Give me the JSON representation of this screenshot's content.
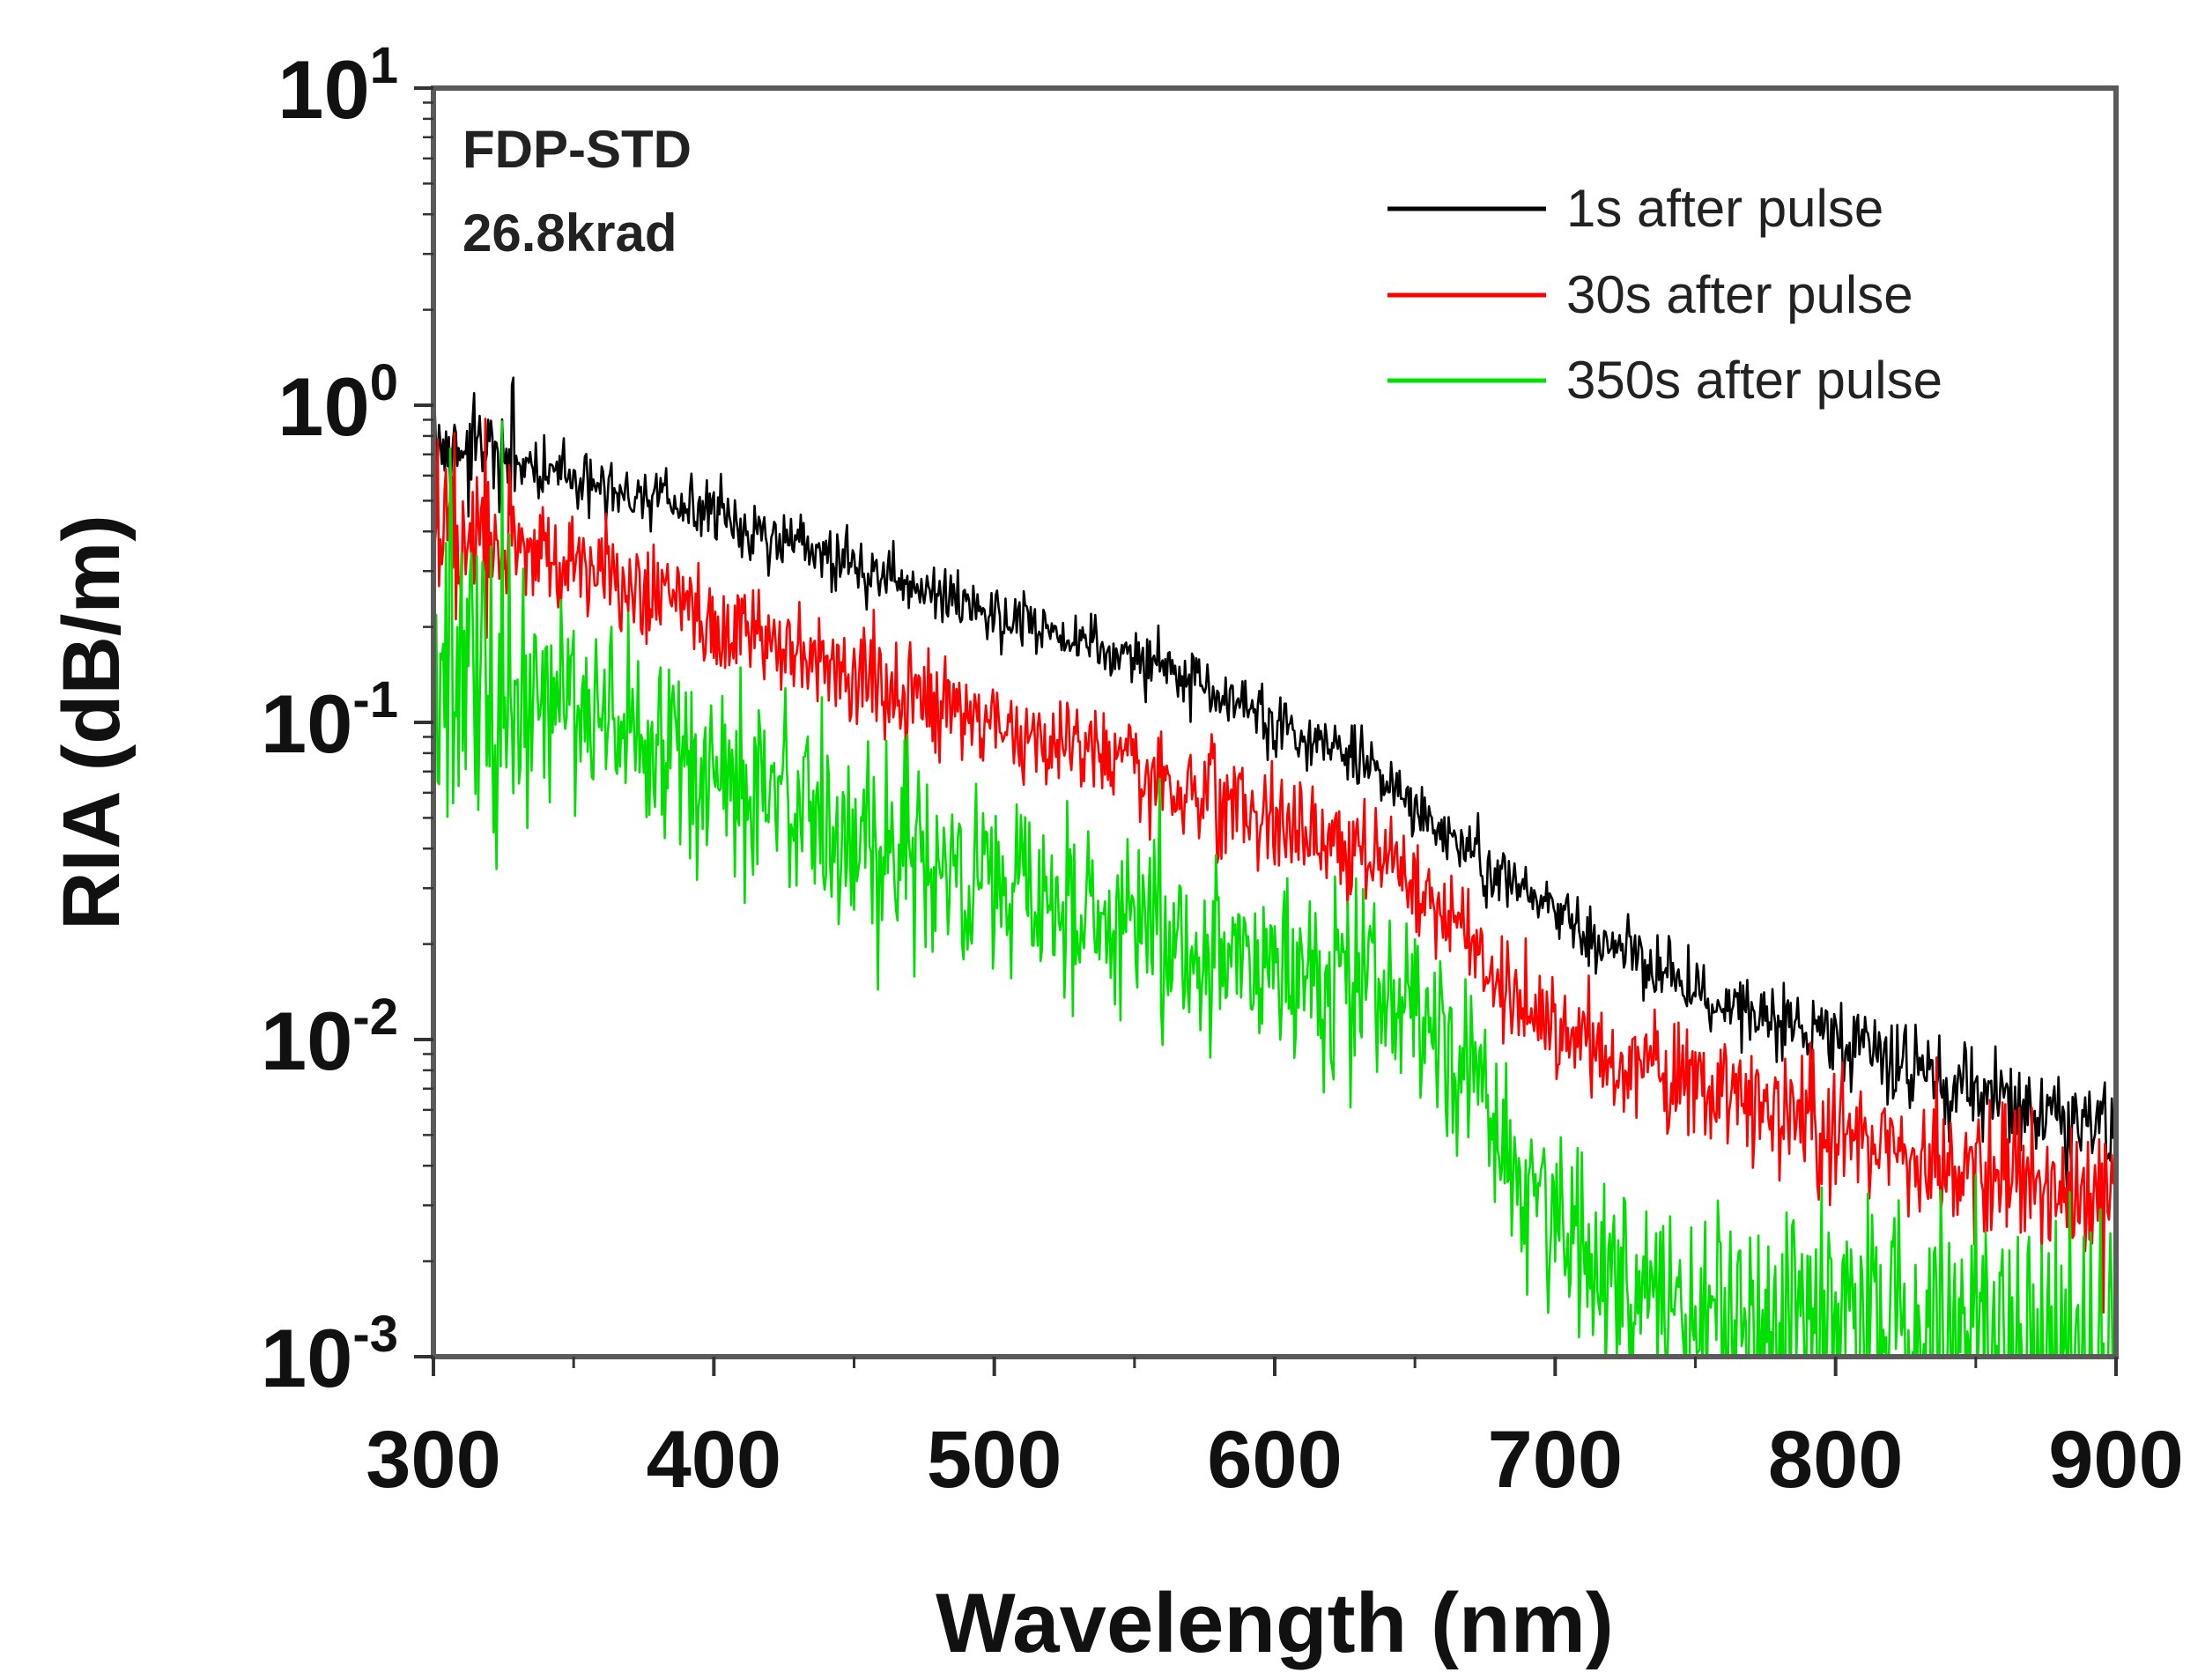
{
  "chart_data": {
    "type": "line",
    "xlabel": "Wavelength (nm)",
    "ylabel": "RIA (dB/m)",
    "xlim": [
      300,
      900
    ],
    "ylim": [
      0.001,
      10
    ],
    "yscale": "log",
    "grid": false,
    "legend_position": "top-right",
    "x_ticks": [
      300,
      400,
      500,
      600,
      700,
      800,
      900
    ],
    "y_ticks": [
      {
        "value": 10,
        "base": "10",
        "exp": "1"
      },
      {
        "value": 1,
        "base": "10",
        "exp": "0"
      },
      {
        "value": 0.1,
        "base": "10",
        "exp": "-1"
      },
      {
        "value": 0.01,
        "base": "10",
        "exp": "-2"
      },
      {
        "value": 0.001,
        "base": "10",
        "exp": "-3"
      }
    ],
    "annotations": [
      "FDP-STD",
      "26.8krad"
    ],
    "series": [
      {
        "name": "1s after pulse",
        "color": "#000000",
        "noise": 0.05,
        "x": [
          300,
          310,
          330,
          350,
          400,
          450,
          500,
          550,
          600,
          630,
          650,
          670,
          700,
          730,
          760,
          800,
          850,
          900
        ],
        "values": [
          0.75,
          0.72,
          0.66,
          0.6,
          0.45,
          0.32,
          0.22,
          0.16,
          0.1,
          0.075,
          0.055,
          0.038,
          0.025,
          0.018,
          0.013,
          0.01,
          0.007,
          0.005
        ]
      },
      {
        "name": "30s after pulse",
        "color": "#ff0000",
        "noise": 0.08,
        "x": [
          300,
          320,
          350,
          400,
          450,
          500,
          550,
          600,
          640,
          660,
          680,
          700,
          730,
          760,
          800,
          850,
          900
        ],
        "values": [
          0.42,
          0.38,
          0.32,
          0.21,
          0.14,
          0.1,
          0.07,
          0.05,
          0.038,
          0.025,
          0.015,
          0.011,
          0.008,
          0.0065,
          0.005,
          0.004,
          0.003
        ]
      },
      {
        "name": "350s after pulse",
        "color": "#00e000",
        "noise": 0.16,
        "x": [
          300,
          310,
          330,
          350,
          400,
          450,
          500,
          550,
          600,
          640,
          660,
          680,
          700,
          720,
          760,
          800,
          850,
          900
        ],
        "values": [
          0.16,
          0.15,
          0.13,
          0.11,
          0.07,
          0.045,
          0.03,
          0.022,
          0.017,
          0.014,
          0.01,
          0.005,
          0.0025,
          0.0016,
          0.0013,
          0.0012,
          0.0011,
          0.001
        ]
      }
    ]
  }
}
